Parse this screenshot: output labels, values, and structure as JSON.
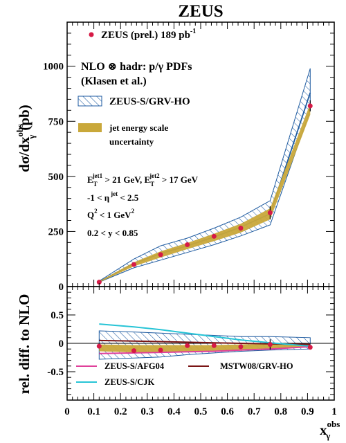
{
  "chart_data": [
    {
      "type": "line",
      "panel": "top",
      "title": "ZEUS",
      "ylabel": "dσ/dx",
      "ylabel_sup": "obs",
      "ylabel_sub": "γ",
      "ylabel_unit": "(pb)",
      "xlim": [
        0,
        1
      ],
      "ylim": [
        0,
        1200
      ],
      "yticks": [
        0,
        250,
        500,
        750,
        1000
      ],
      "ytick_labels": [
        "0",
        "250",
        "500",
        "750",
        "1000"
      ],
      "x": [
        0.12,
        0.25,
        0.35,
        0.45,
        0.55,
        0.65,
        0.76,
        0.91
      ],
      "series": [
        {
          "name": "ZEUS (prel.) 189 pb",
          "name_sup": "-1",
          "kind": "data_points",
          "color": "#d61a46",
          "values": [
            20,
            100,
            145,
            190,
            228,
            265,
            335,
            820
          ],
          "errors": [
            4,
            6,
            7,
            8,
            9,
            11,
            30,
            25
          ]
        },
        {
          "name": "ZEUS-S/GRV-HO",
          "kind": "hatched_band",
          "color": "#1d5aa0",
          "lower": [
            20,
            85,
            120,
            155,
            190,
            230,
            280,
            800
          ],
          "upper": [
            25,
            125,
            185,
            220,
            265,
            315,
            390,
            990
          ],
          "center": [
            22,
            105,
            150,
            185,
            225,
            270,
            330,
            880
          ]
        },
        {
          "name": "jet energy scale uncertainty",
          "kind": "filled_band",
          "color": "#c9a83a",
          "lower": [
            19,
            92,
            132,
            170,
            206,
            245,
            305,
            780
          ],
          "upper": [
            24,
            110,
            160,
            198,
            240,
            285,
            355,
            830
          ]
        }
      ],
      "legend_header": [
        "NLO ⊗ hadr: p/γ PDFs",
        "(Klasen et al.)"
      ],
      "legend_position": "top-left",
      "cuts": [
        {
          "pre": "E",
          "sub": "T",
          "sup": "jet1",
          "post": " > 21 GeV, ",
          "pre2": "E",
          "sub2": "T",
          "sup2": "jet2",
          "post2": " > 17 GeV"
        },
        {
          "text": "-1 < η",
          "sup": "jet",
          "post": " < 2.5"
        },
        {
          "text": "Q",
          "sup": "2",
          "post": " < 1 GeV",
          "sup2": "2"
        },
        {
          "text": "0.2 < y < 0.85"
        }
      ]
    },
    {
      "type": "line",
      "panel": "bottom",
      "ylabel": "rel. diff. to NLO",
      "xlabel": "x",
      "xlabel_sup": "obs",
      "xlabel_sub": "γ",
      "xlim": [
        0,
        1
      ],
      "ylim": [
        -1,
        1
      ],
      "xticks": [
        0,
        0.1,
        0.2,
        0.3,
        0.4,
        0.5,
        0.6,
        0.7,
        0.8,
        0.9,
        1
      ],
      "xtick_labels": [
        "0",
        "0.1",
        "0.2",
        "0.3",
        "0.4",
        "0.5",
        "0.6",
        "0.7",
        "0.8",
        "0.9",
        "1"
      ],
      "yticks": [
        -0.5,
        0,
        0.5
      ],
      "ytick_labels": [
        "-0.5",
        "0",
        "0.5"
      ],
      "x": [
        0.12,
        0.25,
        0.35,
        0.45,
        0.55,
        0.65,
        0.76,
        0.91
      ],
      "series": [
        {
          "name": "data",
          "kind": "data_points",
          "color": "#d61a46",
          "values": [
            -0.05,
            -0.13,
            -0.12,
            -0.04,
            -0.04,
            -0.06,
            -0.02,
            -0.07
          ],
          "errors": [
            0.02,
            0.02,
            0.02,
            0.02,
            0.02,
            0.03,
            0.09,
            0.03
          ]
        },
        {
          "name": "theory_band",
          "kind": "hatched_band",
          "color": "#1d5aa0",
          "lower": [
            -0.28,
            -0.26,
            -0.24,
            -0.2,
            -0.17,
            -0.14,
            -0.12,
            -0.1
          ],
          "upper": [
            0.22,
            0.2,
            0.18,
            0.16,
            0.14,
            0.12,
            0.12,
            0.1
          ]
        },
        {
          "name": "energy_scale_band",
          "kind": "filled_band",
          "color": "#c9a83a",
          "lower": [
            -0.14,
            -0.16,
            -0.16,
            -0.15,
            -0.15,
            -0.13,
            -0.1,
            -0.06
          ],
          "upper": [
            -0.02,
            -0.03,
            -0.03,
            -0.03,
            -0.03,
            -0.02,
            -0.01,
            -0.02
          ]
        },
        {
          "name": "ZEUS-S/AFG04",
          "kind": "line",
          "color": "#e0409a",
          "values": [
            -0.18,
            -0.17,
            -0.16,
            -0.15,
            -0.14,
            -0.12,
            -0.1,
            -0.06
          ]
        },
        {
          "name": "MSTW08/GRV-HO",
          "kind": "line",
          "color": "#7a1414",
          "values": [
            0.05,
            0.04,
            0.03,
            0.02,
            0.01,
            0.0,
            -0.01,
            -0.02
          ]
        },
        {
          "name": "ZEUS-S/CJK",
          "kind": "line",
          "color": "#27c4d6",
          "values": [
            0.34,
            0.29,
            0.24,
            0.18,
            0.12,
            0.06,
            0.01,
            -0.05
          ]
        }
      ],
      "legend_position": "bottom"
    }
  ]
}
